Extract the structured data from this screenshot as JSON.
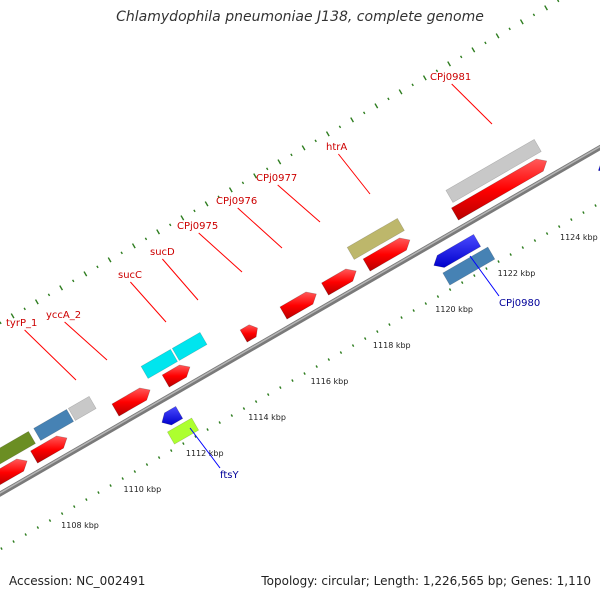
{
  "title": "Chlamydophila pneumoniae J138, complete genome",
  "footer": {
    "accession": "Accession: NC_002491",
    "stats": "Topology: circular; Length: 1,226,565 bp; Genes: 1,110"
  },
  "colors": {
    "forward_label": "#cc0000",
    "reverse_label": "#000099",
    "backbone": "#888888",
    "tick": "#2e7d1f",
    "cds_forward": "#ff0000",
    "cds_reverse": "#0000ff"
  },
  "scale": {
    "unit": "kbp",
    "labels": [
      "1108 kbp",
      "1110 kbp",
      "1112 kbp",
      "1114 kbp",
      "1116 kbp",
      "1118 kbp",
      "1120 kbp",
      "1122 kbp",
      "1124 kbp"
    ]
  },
  "gene_labels": {
    "forward": [
      "tyrP_1",
      "yccA_2",
      "sucC",
      "sucD",
      "CPj0975",
      "CPj0976",
      "CPj0977",
      "htrA",
      "CPj0981"
    ],
    "reverse": [
      "ftsY",
      "CPj0980"
    ]
  }
}
